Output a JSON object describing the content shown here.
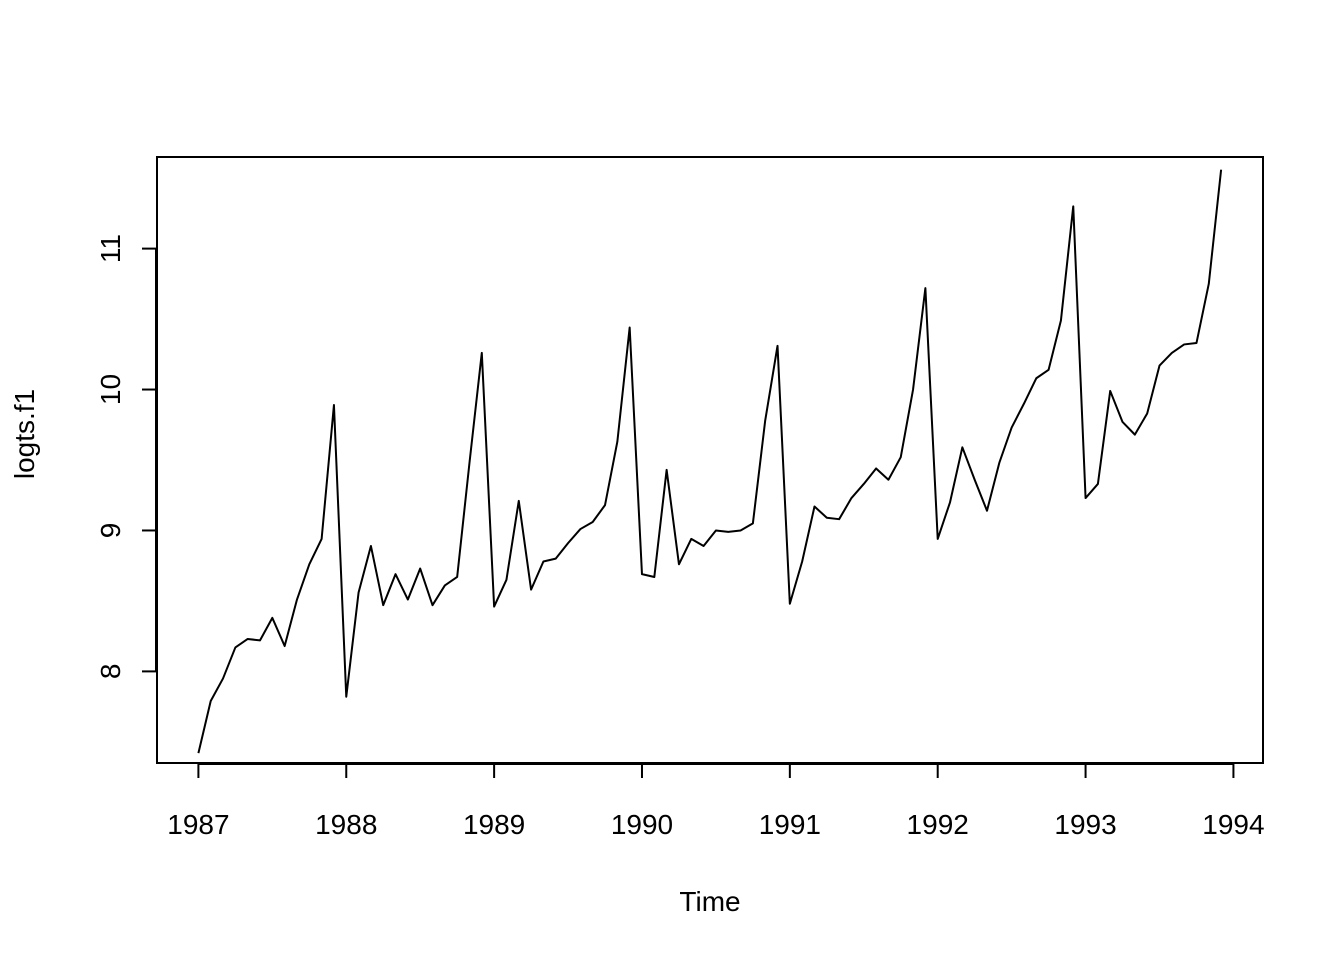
{
  "chart_data": {
    "type": "line",
    "title": "",
    "xlabel": "Time",
    "ylabel": "logts.f1",
    "xlim": [
      1986.72,
      1994.2
    ],
    "ylim": [
      7.35,
      11.65
    ],
    "grid": false,
    "legend": "none",
    "x_ticks": [
      {
        "value": 1987,
        "label": "1987"
      },
      {
        "value": 1988,
        "label": "1988"
      },
      {
        "value": 1989,
        "label": "1989"
      },
      {
        "value": 1990,
        "label": "1990"
      },
      {
        "value": 1991,
        "label": "1991"
      },
      {
        "value": 1992,
        "label": "1992"
      },
      {
        "value": 1993,
        "label": "1993"
      },
      {
        "value": 1994,
        "label": "1994"
      }
    ],
    "y_ticks": [
      {
        "value": 8,
        "label": "8"
      },
      {
        "value": 9,
        "label": "9"
      },
      {
        "value": 10,
        "label": "10"
      },
      {
        "value": 11,
        "label": "11"
      }
    ],
    "line_color": "#000000",
    "series": [
      {
        "start": 1987,
        "frequency": 12,
        "values": [
          7.42,
          7.79,
          7.95,
          8.17,
          8.23,
          8.22,
          8.38,
          8.18,
          8.51,
          8.76,
          8.94,
          9.89,
          7.82,
          8.56,
          8.89,
          8.47,
          8.69,
          8.51,
          8.73,
          8.47,
          8.61,
          8.67,
          9.48,
          10.26,
          8.46,
          8.65,
          9.21,
          8.58,
          8.78,
          8.8,
          8.91,
          9.01,
          9.06,
          9.18,
          9.63,
          10.44,
          8.69,
          8.67,
          9.43,
          8.76,
          8.94,
          8.89,
          9.0,
          8.99,
          9.0,
          9.05,
          9.78,
          10.31,
          8.48,
          8.78,
          9.17,
          9.09,
          9.08,
          9.23,
          9.33,
          9.44,
          9.36,
          9.52,
          10.0,
          10.72,
          8.94,
          9.2,
          9.59,
          9.36,
          9.14,
          9.48,
          9.73,
          9.9,
          10.08,
          10.14,
          10.49,
          11.3,
          9.23,
          9.33,
          9.99,
          9.77,
          9.68,
          9.83,
          10.17,
          10.26,
          10.32,
          10.33,
          10.75,
          11.56
        ]
      }
    ]
  }
}
